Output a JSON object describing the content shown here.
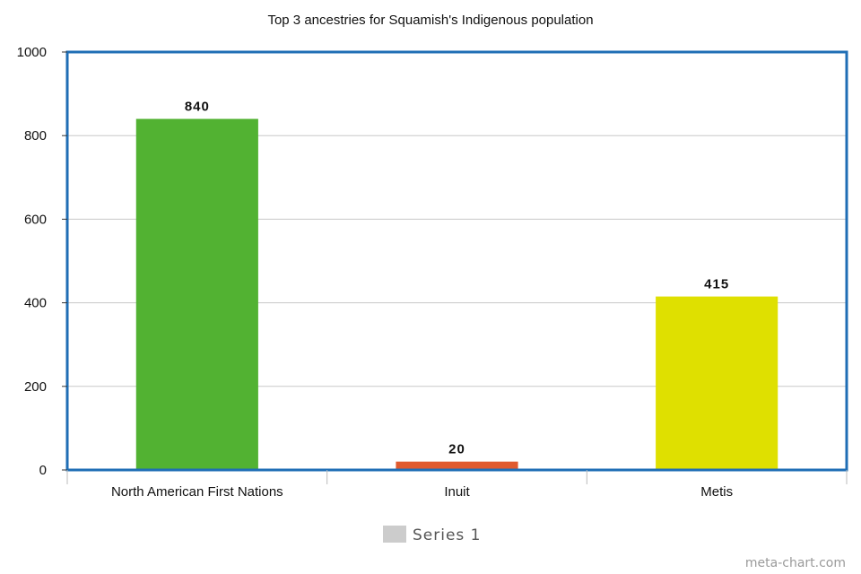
{
  "chart_data": {
    "type": "bar",
    "title": "Top 3 ancestries for Squamish's Indigenous population",
    "categories": [
      "North American First Nations",
      "Inuit",
      "Metis"
    ],
    "series": [
      {
        "name": "Series 1",
        "values": [
          840,
          20,
          415
        ]
      }
    ],
    "value_labels": [
      "840",
      "20",
      "415"
    ],
    "bar_colors": [
      "#52b232",
      "#e05a2e",
      "#dfe000"
    ],
    "yticks": [
      "0",
      "200",
      "400",
      "600",
      "800",
      "1000"
    ],
    "ylim": [
      0,
      1000
    ],
    "grid": true,
    "frame_color": "#1f6eb5",
    "grid_color": "#c8c8c8",
    "legend": {
      "position": "bottom-center",
      "label": "Series 1",
      "swatch_color": "#cccccc"
    },
    "xlabel": "",
    "ylabel": ""
  },
  "credit": "meta-chart.com"
}
